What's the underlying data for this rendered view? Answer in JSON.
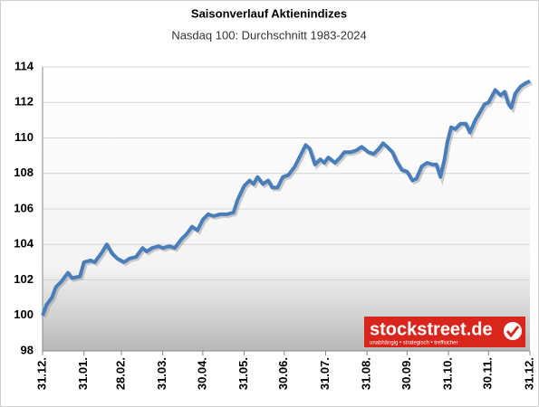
{
  "chart_data": {
    "type": "line",
    "title": "Saisonverlauf Aktienindizes",
    "subtitle": "Nasdaq 100: Durchschnitt 1983-2024",
    "logo": "stockstreet.de",
    "logo_tagline": "unabhängig • strategisch • treffsicher",
    "color": "#4a7ebb",
    "grid": true,
    "x": [
      0,
      3,
      7,
      10,
      14,
      19,
      22,
      28,
      31,
      36,
      39,
      44,
      48,
      52,
      56,
      61,
      65,
      70,
      75,
      78,
      82,
      87,
      90,
      95,
      99,
      104,
      108,
      112,
      116,
      120,
      124,
      128,
      133,
      138,
      143,
      146,
      151,
      155,
      158,
      161,
      165,
      169,
      172,
      176,
      180,
      184,
      189,
      193,
      197,
      200,
      204,
      208,
      211,
      214,
      219,
      223,
      226,
      231,
      235,
      239,
      244,
      248,
      252,
      255,
      258,
      262,
      265,
      269,
      273,
      277,
      280,
      284,
      288,
      292,
      295,
      298,
      301,
      303,
      306,
      309,
      313,
      317,
      320,
      324,
      328,
      331,
      334,
      339,
      343,
      346,
      349,
      351,
      354,
      358,
      362,
      365
    ],
    "values": [
      100.0,
      100.6,
      101.0,
      101.6,
      101.9,
      102.4,
      102.1,
      102.2,
      103.0,
      103.1,
      103.0,
      103.5,
      104.0,
      103.5,
      103.2,
      103.0,
      103.2,
      103.3,
      103.8,
      103.6,
      103.8,
      103.9,
      103.8,
      103.9,
      103.8,
      104.3,
      104.6,
      105.0,
      104.8,
      105.4,
      105.7,
      105.6,
      105.7,
      105.7,
      105.8,
      106.5,
      107.3,
      107.6,
      107.4,
      107.8,
      107.4,
      107.6,
      107.2,
      107.2,
      107.8,
      107.9,
      108.4,
      109.0,
      109.6,
      109.4,
      108.5,
      108.8,
      108.6,
      108.9,
      108.6,
      108.9,
      109.2,
      109.2,
      109.3,
      109.5,
      109.2,
      109.1,
      109.4,
      109.7,
      109.5,
      109.2,
      108.7,
      108.2,
      108.1,
      107.6,
      107.7,
      108.4,
      108.6,
      108.5,
      108.5,
      107.8,
      108.8,
      109.7,
      110.6,
      110.5,
      110.8,
      110.8,
      110.3,
      111.0,
      111.5,
      111.9,
      112.0,
      112.7,
      112.4,
      112.6,
      111.9,
      111.7,
      112.5,
      112.9,
      113.1,
      113.2
    ],
    "xlim": [
      0,
      365
    ],
    "xticks": [
      {
        "value": 0,
        "label": "31.12."
      },
      {
        "value": 31,
        "label": "31.01."
      },
      {
        "value": 59,
        "label": "28.02."
      },
      {
        "value": 90,
        "label": "31.03."
      },
      {
        "value": 120,
        "label": "30.04."
      },
      {
        "value": 151,
        "label": "31.05."
      },
      {
        "value": 181,
        "label": "30.06."
      },
      {
        "value": 212,
        "label": "31.07."
      },
      {
        "value": 243,
        "label": "31.08."
      },
      {
        "value": 273,
        "label": "30.09."
      },
      {
        "value": 304,
        "label": "31.10."
      },
      {
        "value": 334,
        "label": "30.11."
      },
      {
        "value": 365,
        "label": "31.12."
      }
    ],
    "ylim": [
      98,
      114
    ],
    "yticks": [
      98,
      100,
      102,
      104,
      106,
      108,
      110,
      112,
      114
    ]
  }
}
